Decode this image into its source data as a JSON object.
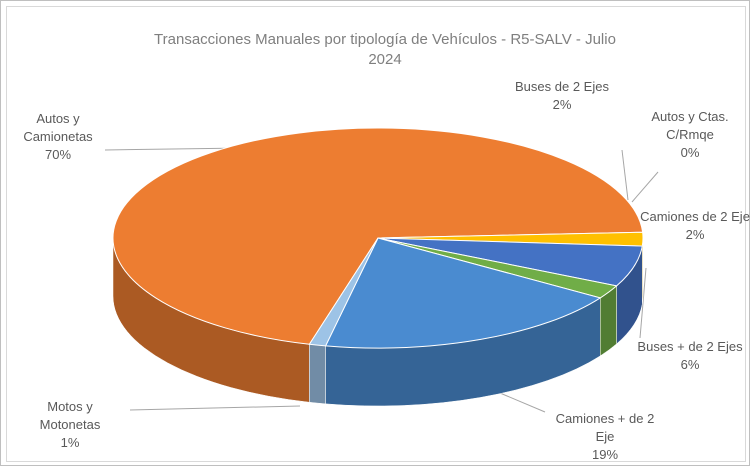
{
  "chart_data": {
    "type": "pie3d",
    "title": "Transacciones Manuales por tipología de Vehículos - R5-SALV - Julio 2024",
    "categories": [
      "Autos y Camionetas",
      "Buses de 2 Ejes",
      "Autos y Ctas. C/Rmqe",
      "Buses + de 2 Ejes",
      "Camiones de 2 Eje",
      "Camiones + de 2 Eje",
      "Motos y Motonetas"
    ],
    "values": [
      70,
      2,
      0,
      6,
      2,
      19,
      1
    ],
    "value_labels": [
      "70%",
      "2%",
      "0%",
      "6%",
      "2%",
      "19%",
      "1%"
    ],
    "colors": [
      "#ed7d31",
      "#ffc000",
      "#a5a5a5",
      "#4472c4",
      "#70ad47",
      "#4a8bd0",
      "#9dc3e6"
    ]
  }
}
